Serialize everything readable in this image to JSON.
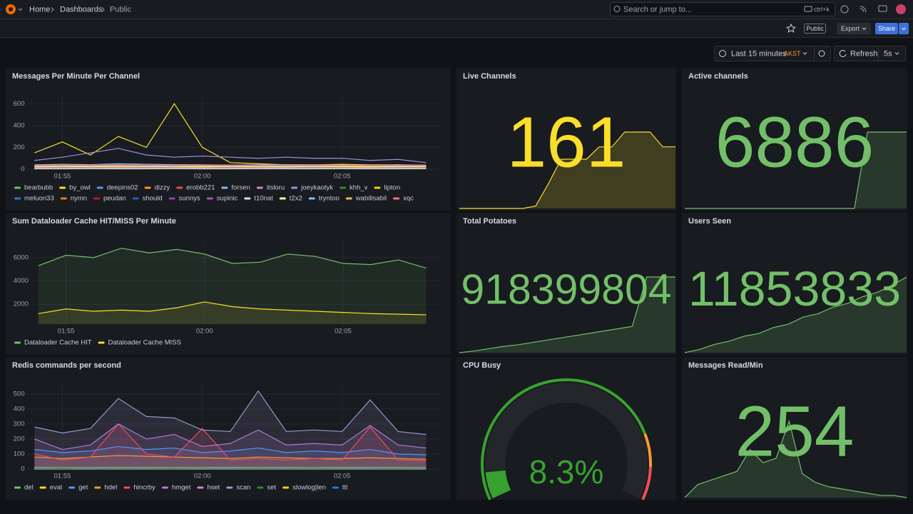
{
  "header": {
    "breadcrumbs": [
      "Home",
      "Dashboards",
      "Public"
    ],
    "search_placeholder": "Search or jump to...",
    "search_shortcut": "ctrl+k"
  },
  "toolbar": {
    "public_tag": "Public",
    "export": "Export",
    "share": "Share"
  },
  "time_picker": {
    "range": "Last 15 minutes",
    "timezone": "AKST",
    "refresh": "Refresh",
    "interval": "5s"
  },
  "panels": [
    {
      "type": "line",
      "title": "Messages Per Minute Per Channel",
      "fill_opacity": 0,
      "x": [
        -1,
        0,
        1,
        2,
        3,
        4,
        5,
        6,
        7,
        8,
        9,
        10,
        11,
        12,
        13
      ],
      "xlim": [
        -1.25,
        13.5
      ],
      "xticks": [
        {
          "value": 0,
          "label": "01:55"
        },
        {
          "value": 5,
          "label": "02:00"
        },
        {
          "value": 10,
          "label": "02:05"
        }
      ],
      "ylim": [
        0,
        700
      ],
      "yticks": [
        0,
        200,
        400,
        600
      ],
      "grid": true,
      "series": [
        {
          "name": "bearbubb",
          "color": "#73bf69",
          "values": [
            20,
            22,
            25,
            20,
            18,
            22,
            20,
            18,
            20,
            22,
            20,
            18,
            20,
            22,
            25
          ]
        },
        {
          "name": "by_owl",
          "color": "#fade2a",
          "values": [
            150,
            250,
            130,
            300,
            200,
            600,
            200,
            60,
            50,
            40,
            40,
            45,
            40,
            40,
            30
          ]
        },
        {
          "name": "deepins02",
          "color": "#5794f2",
          "values": [
            30,
            35,
            30,
            32,
            30,
            35,
            32,
            30,
            28,
            30,
            32,
            30,
            28,
            30,
            35
          ]
        },
        {
          "name": "dizzy",
          "color": "#ff9830",
          "values": [
            10,
            12,
            10,
            11,
            10,
            12,
            10,
            10,
            11,
            10,
            12,
            10,
            10,
            11,
            10
          ]
        },
        {
          "name": "erobb221",
          "color": "#f2495c",
          "values": [
            15,
            14,
            16,
            15,
            14,
            15,
            16,
            14,
            15,
            14,
            16,
            15,
            14,
            15,
            16
          ]
        },
        {
          "name": "forsen",
          "color": "#8ab8ff",
          "values": [
            40,
            45,
            42,
            50,
            45,
            42,
            40,
            38,
            40,
            42,
            40,
            38,
            36,
            40,
            38
          ]
        },
        {
          "name": "itsloru",
          "color": "#d683ce",
          "values": [
            12,
            10,
            14,
            12,
            11,
            13,
            12,
            10,
            12,
            11,
            13,
            12,
            10,
            12,
            11
          ]
        },
        {
          "name": "joeykaotyk",
          "color": "#9e8fe0",
          "values": [
            80,
            110,
            150,
            190,
            130,
            110,
            120,
            110,
            100,
            110,
            100,
            100,
            80,
            90,
            60
          ]
        },
        {
          "name": "khh_v",
          "color": "#37872d",
          "values": [
            8,
            9,
            8,
            10,
            9,
            8,
            9,
            8,
            10,
            9,
            8,
            9,
            8,
            9,
            8
          ]
        },
        {
          "name": "lipton",
          "color": "#f2cc0c",
          "values": [
            25,
            28,
            26,
            30,
            27,
            25,
            28,
            26,
            24,
            25,
            27,
            26,
            24,
            25,
            26
          ]
        },
        {
          "name": "meluon33",
          "color": "#3274d9",
          "values": [
            18,
            20,
            19,
            22,
            20,
            19,
            18,
            20,
            19,
            18,
            20,
            19,
            18,
            19,
            20
          ]
        },
        {
          "name": "nymn",
          "color": "#ff780a",
          "values": [
            5,
            6,
            5,
            7,
            6,
            5,
            6,
            5,
            6,
            5,
            6,
            5,
            6,
            5,
            6
          ]
        },
        {
          "name": "peudan",
          "color": "#c4162a",
          "values": [
            4,
            5,
            4,
            5,
            4,
            5,
            4,
            5,
            4,
            5,
            4,
            5,
            4,
            5,
            4
          ]
        },
        {
          "name": "should",
          "color": "#1f60c4",
          "values": [
            9,
            10,
            9,
            11,
            10,
            9,
            10,
            9,
            10,
            9,
            10,
            9,
            10,
            9,
            10
          ]
        },
        {
          "name": "sunnys",
          "color": "#8f3bb8",
          "values": [
            6,
            7,
            6,
            8,
            7,
            6,
            7,
            6,
            7,
            6,
            7,
            6,
            7,
            6,
            7
          ]
        },
        {
          "name": "supinic",
          "color": "#a352cc",
          "values": [
            14,
            15,
            14,
            16,
            15,
            14,
            15,
            14,
            15,
            14,
            15,
            14,
            15,
            14,
            15
          ]
        },
        {
          "name": "t10nat",
          "color": "#e0e0e0",
          "values": [
            3,
            3,
            4,
            3,
            3,
            4,
            3,
            3,
            4,
            3,
            3,
            4,
            3,
            3,
            4
          ]
        },
        {
          "name": "t2x2",
          "color": "#fff899",
          "values": [
            22,
            24,
            23,
            26,
            24,
            23,
            22,
            24,
            23,
            22,
            24,
            23,
            22,
            23,
            24
          ]
        },
        {
          "name": "tryntoo",
          "color": "#8ab8ff",
          "values": [
            7,
            8,
            7,
            9,
            8,
            7,
            8,
            7,
            8,
            7,
            8,
            7,
            8,
            7,
            8
          ]
        },
        {
          "name": "wabilisabil",
          "color": "#ffb357",
          "values": [
            11,
            12,
            11,
            13,
            12,
            11,
            12,
            11,
            12,
            11,
            12,
            11,
            12,
            11,
            12
          ]
        },
        {
          "name": "xqc",
          "color": "#ff7383",
          "values": [
            35,
            38,
            36,
            40,
            38,
            36,
            35,
            37,
            36,
            35,
            38,
            36,
            35,
            36,
            37
          ]
        }
      ]
    },
    {
      "type": "stat",
      "title": "Live Channels",
      "value": 161,
      "color": "#fade2a",
      "sparkline": [
        130,
        130,
        130,
        130,
        130,
        130,
        131,
        140,
        150,
        150,
        150,
        155,
        155,
        161,
        161,
        161,
        155,
        155
      ]
    },
    {
      "type": "stat",
      "title": "Active channels",
      "value": 6886,
      "color": "#73bf69",
      "sparkline": [
        6880,
        6880,
        6880,
        6880,
        6880,
        6880,
        6880,
        6880,
        6880,
        6880,
        6880,
        6880,
        6880,
        6880,
        6886,
        6886,
        6886,
        6886
      ]
    },
    {
      "type": "line",
      "title": "Sum Dataloader Cache HIT/MISS Per Minute",
      "fill_opacity": 0.1,
      "x": [
        -1,
        0,
        1,
        2,
        3,
        4,
        5,
        6,
        7,
        8,
        9,
        10,
        11,
        12,
        13
      ],
      "xlim": [
        -1.25,
        13.5
      ],
      "xticks": [
        {
          "value": 0,
          "label": "01:55"
        },
        {
          "value": 5,
          "label": "02:00"
        },
        {
          "value": 10,
          "label": "02:05"
        }
      ],
      "ylim": [
        300,
        7700
      ],
      "yticks": [
        2000,
        4000,
        6000
      ],
      "grid": true,
      "series": [
        {
          "name": "Dataloader Cache HIT",
          "color": "#73bf69",
          "values": [
            5300,
            6200,
            6000,
            6800,
            6400,
            6700,
            6300,
            5500,
            5600,
            6300,
            6100,
            5500,
            5400,
            5800,
            5100
          ]
        },
        {
          "name": "Dataloader Cache MISS",
          "color": "#fade2a",
          "values": [
            1200,
            1600,
            1400,
            1500,
            1400,
            1700,
            2200,
            1800,
            1600,
            1500,
            1400,
            1300,
            1200,
            1150,
            1100
          ]
        }
      ]
    },
    {
      "type": "stat",
      "title": "Total Potatoes",
      "value": 918399804,
      "color": "#73bf69",
      "sparkline": [
        918390000,
        918390200,
        918390500,
        918390800,
        918391000,
        918391300,
        918391600,
        918391900,
        918392200,
        918392500,
        918392800,
        918393100,
        918393400,
        918399804,
        918399804,
        918399804
      ]
    },
    {
      "type": "stat",
      "title": "Users Seen",
      "value": 11853833,
      "color": "#73bf69",
      "sparkline": [
        11840000,
        11840600,
        11841500,
        11842100,
        11843000,
        11843500,
        11844600,
        11845200,
        11846500,
        11847100,
        11848300,
        11849000,
        11850200,
        11851000,
        11852300,
        11853833
      ]
    },
    {
      "type": "line",
      "title": "Redis commands per second",
      "fill_opacity": 0.15,
      "x": [
        -1,
        0,
        1,
        2,
        3,
        4,
        5,
        6,
        7,
        8,
        9,
        10,
        11,
        12,
        13
      ],
      "xlim": [
        -1.25,
        13.5
      ],
      "xticks": [
        {
          "value": 0,
          "label": "01:55"
        },
        {
          "value": 5,
          "label": "02:00"
        },
        {
          "value": 10,
          "label": "02:05"
        }
      ],
      "ylim": [
        0,
        580
      ],
      "yticks": [
        0,
        100,
        200,
        300,
        400,
        500
      ],
      "grid": true,
      "series": [
        {
          "name": "del",
          "color": "#73bf69",
          "values": [
            5,
            4,
            6,
            5,
            4,
            5,
            6,
            5,
            4,
            5,
            6,
            5,
            4,
            5,
            5
          ]
        },
        {
          "name": "eval",
          "color": "#fade2a",
          "values": [
            2,
            2,
            2,
            2,
            2,
            2,
            2,
            2,
            2,
            2,
            2,
            2,
            2,
            2,
            2
          ]
        },
        {
          "name": "get",
          "color": "#5794f2",
          "values": [
            130,
            110,
            120,
            150,
            130,
            140,
            110,
            120,
            140,
            110,
            120,
            110,
            130,
            100,
            95
          ]
        },
        {
          "name": "hdel",
          "color": "#ff9830",
          "values": [
            80,
            70,
            80,
            90,
            85,
            80,
            75,
            70,
            80,
            75,
            70,
            70,
            75,
            70,
            65
          ]
        },
        {
          "name": "hincrby",
          "color": "#f2495c",
          "values": [
            100,
            60,
            80,
            300,
            100,
            80,
            270,
            60,
            70,
            60,
            70,
            60,
            280,
            60,
            55
          ]
        },
        {
          "name": "hmget",
          "color": "#b877d9",
          "values": [
            200,
            130,
            160,
            300,
            200,
            230,
            150,
            170,
            260,
            160,
            170,
            160,
            290,
            160,
            140
          ]
        },
        {
          "name": "hset",
          "color": "#d683ce",
          "values": [
            10,
            12,
            10,
            11,
            10,
            12,
            10,
            10,
            11,
            10,
            12,
            10,
            10,
            11,
            10
          ]
        },
        {
          "name": "scan",
          "color": "#9d95c9",
          "values": [
            280,
            240,
            270,
            470,
            350,
            340,
            260,
            250,
            520,
            250,
            260,
            250,
            460,
            250,
            230
          ]
        },
        {
          "name": "set",
          "color": "#37872d",
          "values": [
            15,
            15,
            14,
            16,
            15,
            15,
            14,
            16,
            15,
            15,
            14,
            16,
            15,
            15,
            14
          ]
        },
        {
          "name": "slowlog|len",
          "color": "#f2cc0c",
          "values": [
            0,
            0,
            0,
            0,
            0,
            0,
            0,
            0,
            0,
            0,
            0,
            0,
            0,
            0,
            0
          ]
        },
        {
          "name": "ttl",
          "color": "#3274d9",
          "values": [
            3,
            3,
            3,
            3,
            3,
            3,
            3,
            3,
            3,
            3,
            3,
            3,
            3,
            3,
            3
          ]
        }
      ]
    },
    {
      "type": "gauge",
      "title": "CPU Busy",
      "value": 8.3,
      "value_label": "8.3%",
      "min": 0,
      "max": 100,
      "color": "#37a22f",
      "thresholds": [
        {
          "value": 0,
          "color": "#37a22f"
        },
        {
          "value": 80,
          "color": "#ff9830"
        },
        {
          "value": 90,
          "color": "#f2495c"
        }
      ]
    },
    {
      "type": "stat",
      "title": "Messages Read/Min",
      "value": 254,
      "color": "#73bf69",
      "sparkline": [
        240,
        246,
        248,
        250,
        252,
        262,
        256,
        258,
        275,
        251,
        247,
        245,
        244,
        243,
        242,
        241,
        241,
        240
      ]
    }
  ]
}
